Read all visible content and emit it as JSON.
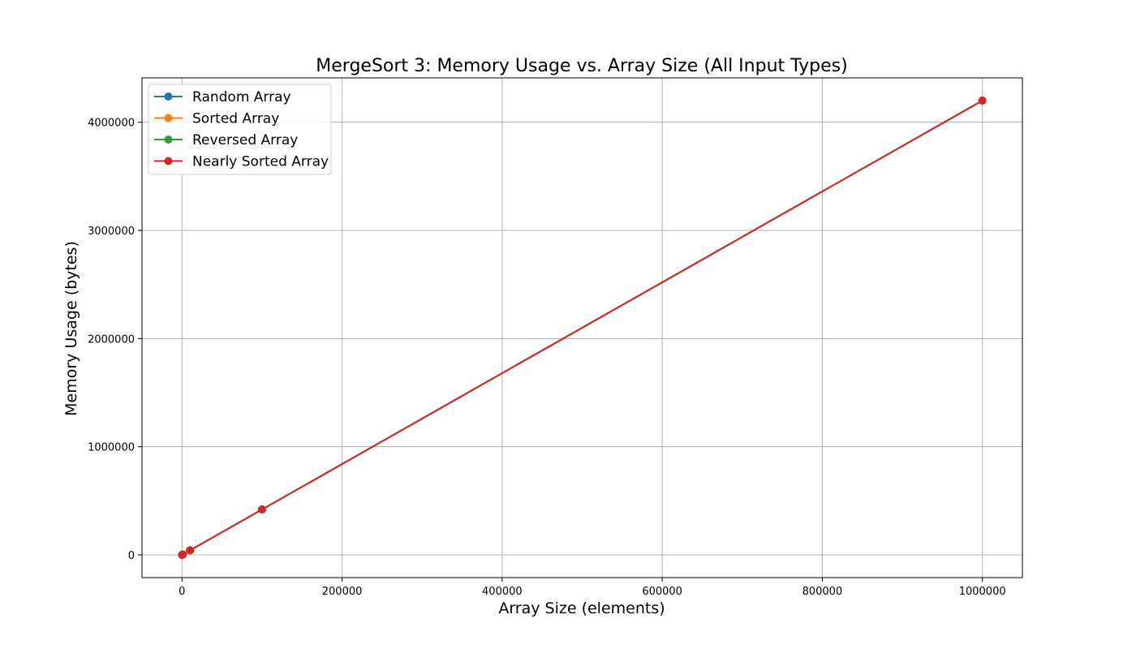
{
  "chart_data": {
    "type": "line",
    "title": "MergeSort 3: Memory Usage vs. Array Size (All Input Types)",
    "xlabel": "Array Size (elements)",
    "ylabel": "Memory Usage (bytes)",
    "xlim": [
      -50000,
      1050000
    ],
    "ylim": [
      -210000,
      4410000
    ],
    "xticks": [
      0,
      200000,
      400000,
      600000,
      800000,
      1000000
    ],
    "xtick_labels": [
      "0",
      "200000",
      "400000",
      "600000",
      "800000",
      "1000000"
    ],
    "yticks": [
      0,
      1000000,
      2000000,
      3000000,
      4000000
    ],
    "ytick_labels": [
      "0",
      "1000000",
      "2000000",
      "3000000",
      "4000000"
    ],
    "grid": true,
    "legend_position": "top-left",
    "x": [
      100,
      1000,
      10000,
      100000,
      1000000
    ],
    "series": [
      {
        "name": "Random Array",
        "color": "#1f77b4",
        "values": [
          420,
          4200,
          42000,
          420000,
          4200000
        ]
      },
      {
        "name": "Sorted Array",
        "color": "#ff7f0e",
        "values": [
          420,
          4200,
          42000,
          420000,
          4200000
        ]
      },
      {
        "name": "Reversed Array",
        "color": "#2ca02c",
        "values": [
          420,
          4200,
          42000,
          420000,
          4200000
        ]
      },
      {
        "name": "Nearly Sorted Array",
        "color": "#d62728",
        "values": [
          420,
          4200,
          42000,
          420000,
          4200000
        ]
      }
    ]
  }
}
